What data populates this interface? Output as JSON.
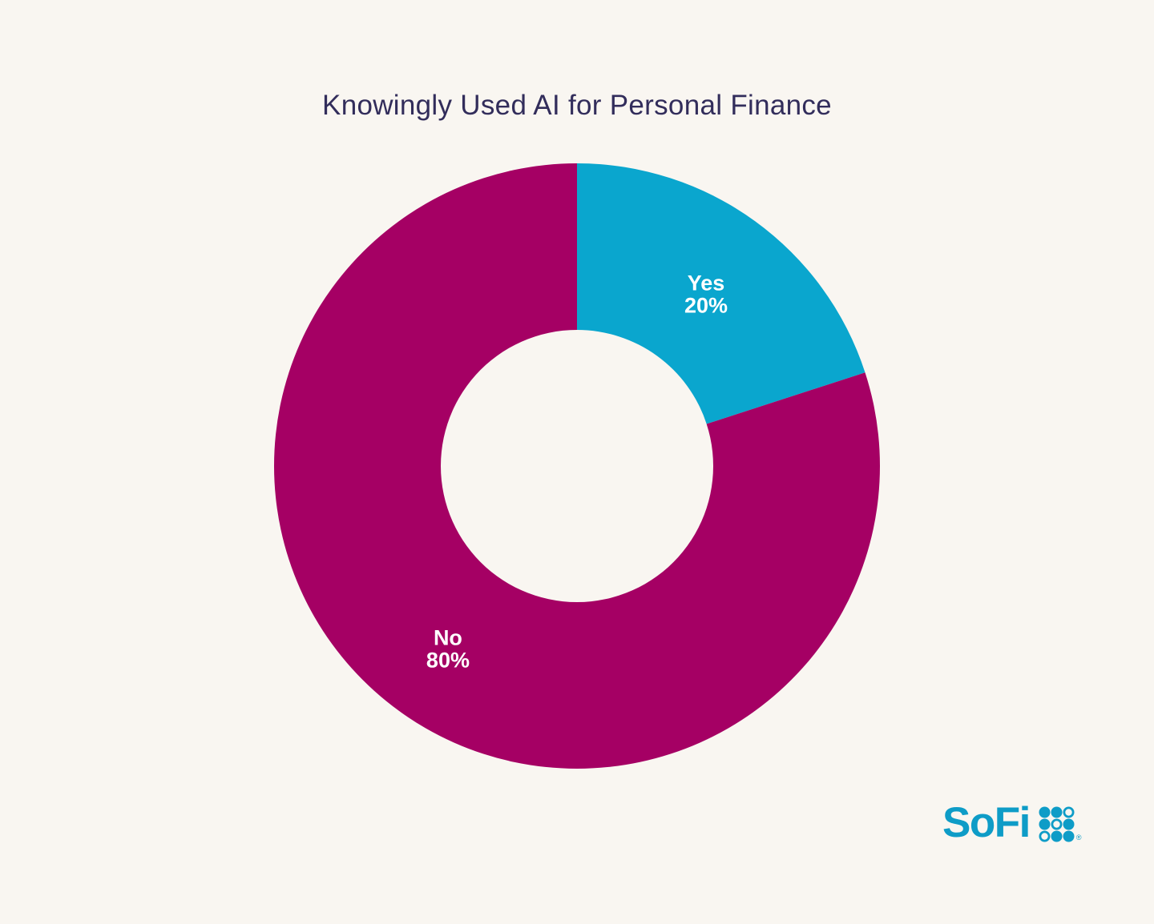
{
  "page": {
    "background": "#F9F6F1"
  },
  "chart_data": {
    "type": "pie",
    "donut": true,
    "hole_ratio": 0.45,
    "title": "Knowingly Used AI for Personal Finance",
    "title_color": "#322D5B",
    "categories": [
      "Yes",
      "No"
    ],
    "values": [
      20,
      80
    ],
    "slices": [
      {
        "label": "Yes",
        "value": 20,
        "color": "#0AA6CE"
      },
      {
        "label": "No",
        "value": 80,
        "color": "#A50064"
      }
    ],
    "start_angle_deg": 0,
    "direction": "clockwise",
    "label_color": "#FFFFFF",
    "legend": "none"
  },
  "logo": {
    "text": "SoFi",
    "color": "#0E9CC7",
    "registered_mark": "®",
    "dots": [
      "filled",
      "filled",
      "outline",
      "filled",
      "outline",
      "filled",
      "outline",
      "filled",
      "filled"
    ]
  }
}
